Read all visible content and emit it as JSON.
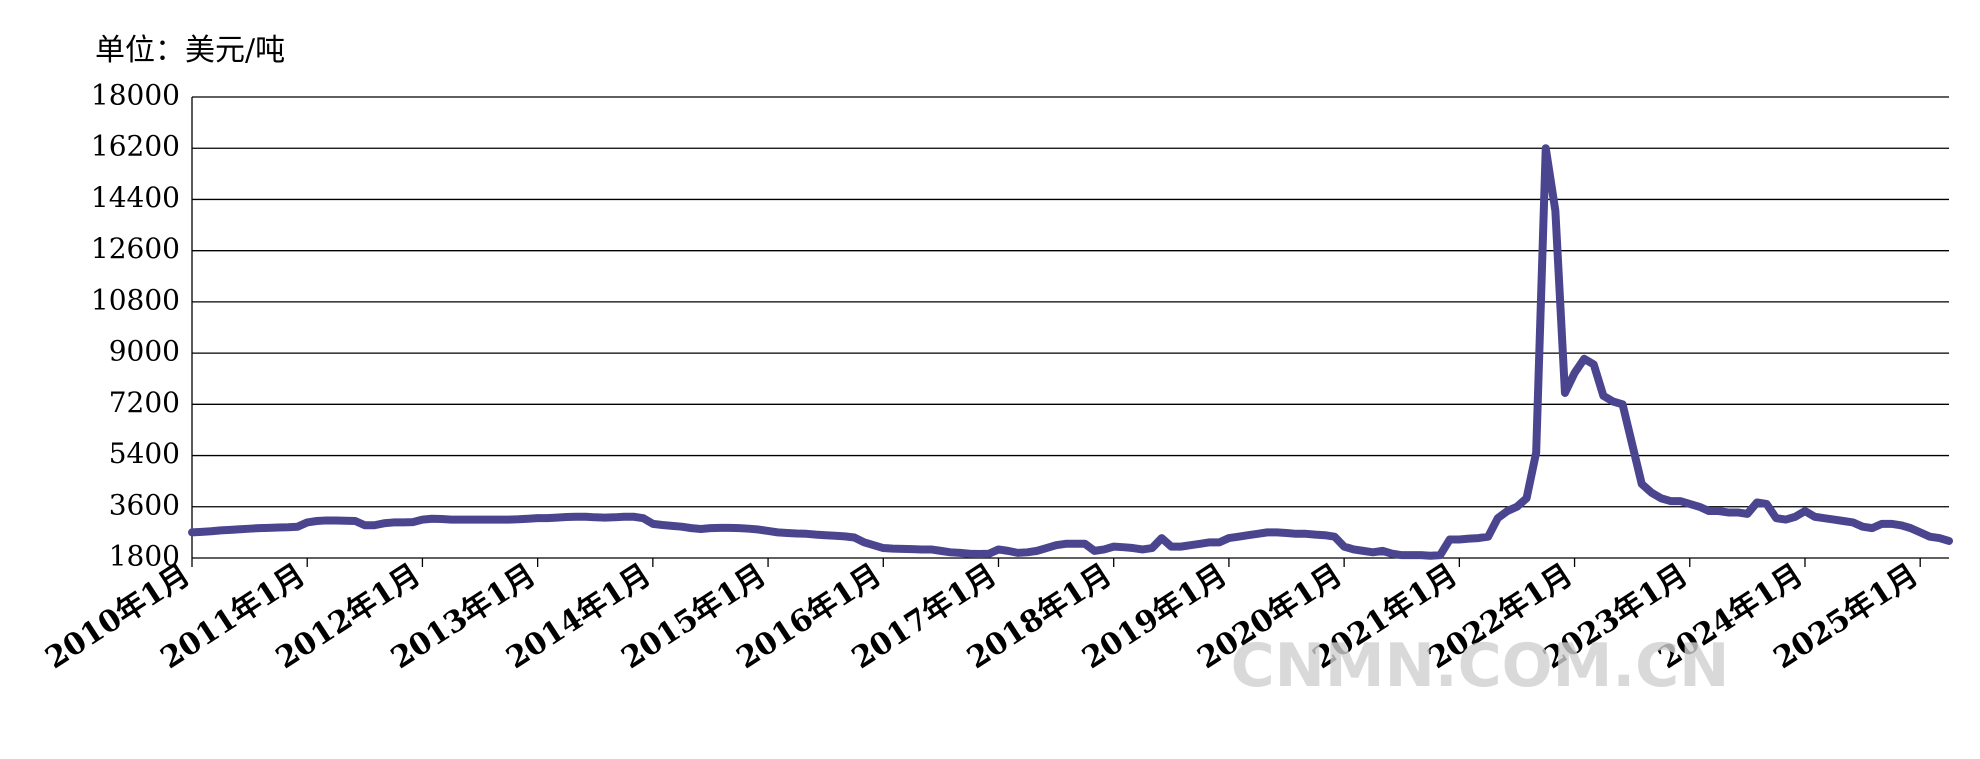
{
  "chart_data": {
    "type": "line",
    "unit_label": "单位：美元/吨",
    "watermark": "CNMN.COM.CN",
    "color": "#4b4590",
    "ylim": [
      1800,
      18000
    ],
    "yticks": [
      1800,
      3600,
      5400,
      7200,
      9000,
      10800,
      12600,
      14400,
      16200,
      18000
    ],
    "grid": true,
    "categories": [
      "2010年1月",
      null,
      null,
      null,
      null,
      null,
      null,
      null,
      null,
      null,
      null,
      null,
      "2011年1月",
      null,
      null,
      null,
      null,
      null,
      null,
      null,
      null,
      null,
      null,
      null,
      "2012年1月",
      null,
      null,
      null,
      null,
      null,
      null,
      null,
      null,
      null,
      null,
      null,
      "2013年1月",
      null,
      null,
      null,
      null,
      null,
      null,
      null,
      null,
      null,
      null,
      null,
      "2014年1月",
      null,
      null,
      null,
      null,
      null,
      null,
      null,
      null,
      null,
      null,
      null,
      "2015年1月",
      null,
      null,
      null,
      null,
      null,
      null,
      null,
      null,
      null,
      null,
      null,
      "2016年1月",
      null,
      null,
      null,
      null,
      null,
      null,
      null,
      null,
      null,
      null,
      null,
      "2017年1月",
      null,
      null,
      null,
      null,
      null,
      null,
      null,
      null,
      null,
      null,
      null,
      "2018年1月",
      null,
      null,
      null,
      null,
      null,
      null,
      null,
      null,
      null,
      null,
      null,
      "2019年1月",
      null,
      null,
      null,
      null,
      null,
      null,
      null,
      null,
      null,
      null,
      null,
      "2020年1月",
      null,
      null,
      null,
      null,
      null,
      null,
      null,
      null,
      null,
      null,
      null,
      "2021年1月",
      null,
      null,
      null,
      null,
      null,
      null,
      null,
      null,
      null,
      null,
      null,
      "2022年1月",
      null,
      null,
      null,
      null,
      null,
      null,
      null,
      null,
      null,
      null,
      null,
      "2023年1月",
      null,
      null,
      null,
      null,
      null,
      null,
      null,
      null,
      null,
      null,
      null,
      "2024年1月",
      null,
      null,
      null,
      null,
      null,
      null,
      null,
      null,
      null,
      null,
      null,
      "2025年1月",
      null,
      null,
      null
    ],
    "values": [
      2700,
      2720,
      2740,
      2770,
      2790,
      2810,
      2830,
      2850,
      2860,
      2870,
      2880,
      2900,
      3050,
      3100,
      3120,
      3120,
      3110,
      3100,
      2950,
      2950,
      3020,
      3050,
      3050,
      3060,
      3150,
      3180,
      3170,
      3150,
      3150,
      3150,
      3150,
      3150,
      3150,
      3150,
      3160,
      3180,
      3200,
      3200,
      3220,
      3240,
      3250,
      3250,
      3230,
      3220,
      3230,
      3250,
      3250,
      3200,
      3000,
      2960,
      2930,
      2900,
      2850,
      2820,
      2850,
      2860,
      2860,
      2850,
      2830,
      2800,
      2750,
      2700,
      2680,
      2660,
      2650,
      2620,
      2600,
      2580,
      2560,
      2520,
      2350,
      2250,
      2150,
      2130,
      2120,
      2110,
      2100,
      2100,
      2050,
      2000,
      1980,
      1950,
      1940,
      1950,
      2100,
      2050,
      1980,
      2000,
      2050,
      2150,
      2250,
      2300,
      2300,
      2300,
      2050,
      2100,
      2200,
      2180,
      2150,
      2100,
      2150,
      2500,
      2200,
      2200,
      2250,
      2300,
      2350,
      2350,
      2500,
      2550,
      2600,
      2650,
      2700,
      2700,
      2680,
      2650,
      2650,
      2620,
      2600,
      2550,
      2200,
      2100,
      2050,
      2000,
      2050,
      1950,
      1900,
      1900,
      1900,
      1880,
      1900,
      2450,
      2450,
      2480,
      2500,
      2550,
      3200,
      3450,
      3600,
      3900,
      5500,
      16200,
      14000,
      7600,
      8300,
      8800,
      8600,
      7500,
      7300,
      7200,
      5800,
      4400,
      4100,
      3900,
      3800,
      3800,
      3700,
      3600,
      3450,
      3450,
      3400,
      3400,
      3350,
      3750,
      3700,
      3200,
      3150,
      3250,
      3450,
      3250,
      3200,
      3150,
      3100,
      3050,
      2900,
      2850,
      3000,
      3000,
      2950,
      2850,
      2700,
      2550,
      2500,
      2400
    ]
  }
}
